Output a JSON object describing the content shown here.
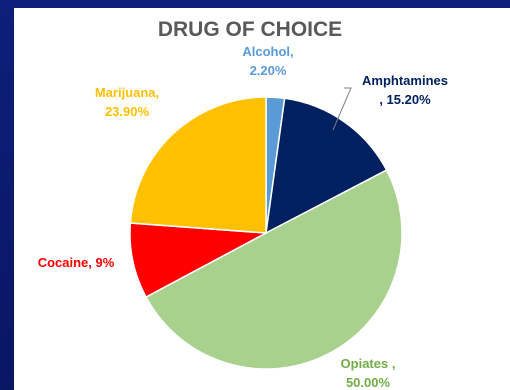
{
  "chart_data": {
    "type": "pie",
    "title": "DRUG OF CHOICE",
    "slices": [
      {
        "name": "Alcohol",
        "value": 2.2,
        "label_lines": [
          "Alcohol,",
          "2.20%"
        ],
        "color": "#5b9bd5"
      },
      {
        "name": "Amphtamines",
        "value": 15.2,
        "label_lines": [
          "Amphtamines",
          ", 15.20%"
        ],
        "color": "#002060"
      },
      {
        "name": "Opiates",
        "value": 50.0,
        "label_lines": [
          "Opiates ,",
          "50.00%"
        ],
        "color": "#a9d18e"
      },
      {
        "name": "Cocaine",
        "value": 9.0,
        "label_lines": [
          "Cocaine, 9%"
        ],
        "color": "#ff0000"
      },
      {
        "name": "Marijuana",
        "value": 23.9,
        "label_lines": [
          "Marijuana,",
          "23.90%"
        ],
        "color": "#ffc000"
      }
    ],
    "legend": "none"
  },
  "colors": {
    "background": "#0b1a6e",
    "panel": "#ffffff",
    "title": "#595959",
    "slice_border": "#ffffff"
  }
}
